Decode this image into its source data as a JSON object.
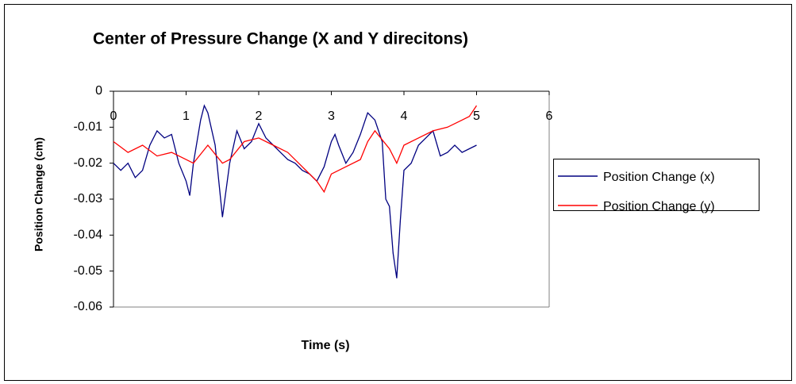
{
  "chart_data": {
    "type": "line",
    "title": "Center of Pressure Change (X and Y direcitons)",
    "x_label": "Time (s)",
    "y_label": "Position Change (cm)",
    "xlim": [
      0,
      6
    ],
    "xticks": [
      0,
      1,
      2,
      3,
      4,
      5,
      6
    ],
    "ylim": [
      -0.06,
      0
    ],
    "yticks": [
      0,
      -0.01,
      -0.02,
      -0.03,
      -0.04,
      -0.05,
      -0.06
    ],
    "legend": "right",
    "series": [
      {
        "name": "Position Change (x)",
        "color": "#000080",
        "x": [
          0,
          0.1,
          0.2,
          0.3,
          0.4,
          0.5,
          0.6,
          0.7,
          0.8,
          0.9,
          1.0,
          1.05,
          1.1,
          1.2,
          1.25,
          1.3,
          1.4,
          1.5,
          1.6,
          1.7,
          1.8,
          1.9,
          2.0,
          2.1,
          2.2,
          2.3,
          2.4,
          2.5,
          2.6,
          2.7,
          2.8,
          2.9,
          3.0,
          3.05,
          3.1,
          3.2,
          3.3,
          3.4,
          3.5,
          3.6,
          3.7,
          3.75,
          3.8,
          3.85,
          3.9,
          3.95,
          4.0,
          4.1,
          4.2,
          4.3,
          4.4,
          4.5,
          4.6,
          4.7,
          4.8,
          4.9,
          5.0
        ],
        "values": [
          -0.02,
          -0.022,
          -0.02,
          -0.024,
          -0.022,
          -0.015,
          -0.011,
          -0.013,
          -0.012,
          -0.02,
          -0.025,
          -0.029,
          -0.02,
          -0.008,
          -0.004,
          -0.006,
          -0.015,
          -0.035,
          -0.02,
          -0.011,
          -0.016,
          -0.014,
          -0.009,
          -0.013,
          -0.015,
          -0.017,
          -0.019,
          -0.02,
          -0.022,
          -0.023,
          -0.025,
          -0.021,
          -0.014,
          -0.012,
          -0.015,
          -0.02,
          -0.017,
          -0.012,
          -0.006,
          -0.008,
          -0.014,
          -0.03,
          -0.032,
          -0.045,
          -0.052,
          -0.036,
          -0.022,
          -0.02,
          -0.015,
          -0.013,
          -0.011,
          -0.018,
          -0.017,
          -0.015,
          -0.017,
          -0.016,
          -0.015
        ]
      },
      {
        "name": "Position Change (y)",
        "color": "#ff0000",
        "x": [
          0,
          0.2,
          0.4,
          0.6,
          0.8,
          1.0,
          1.1,
          1.3,
          1.5,
          1.6,
          1.8,
          2.0,
          2.2,
          2.4,
          2.6,
          2.8,
          2.9,
          3.0,
          3.2,
          3.4,
          3.5,
          3.6,
          3.8,
          3.9,
          4.0,
          4.2,
          4.4,
          4.6,
          4.8,
          4.9,
          5.0
        ],
        "values": [
          -0.014,
          -0.017,
          -0.015,
          -0.018,
          -0.017,
          -0.019,
          -0.02,
          -0.015,
          -0.02,
          -0.019,
          -0.014,
          -0.013,
          -0.015,
          -0.017,
          -0.021,
          -0.025,
          -0.028,
          -0.023,
          -0.021,
          -0.019,
          -0.014,
          -0.011,
          -0.016,
          -0.02,
          -0.015,
          -0.013,
          -0.011,
          -0.01,
          -0.008,
          -0.007,
          -0.004
        ]
      }
    ]
  }
}
